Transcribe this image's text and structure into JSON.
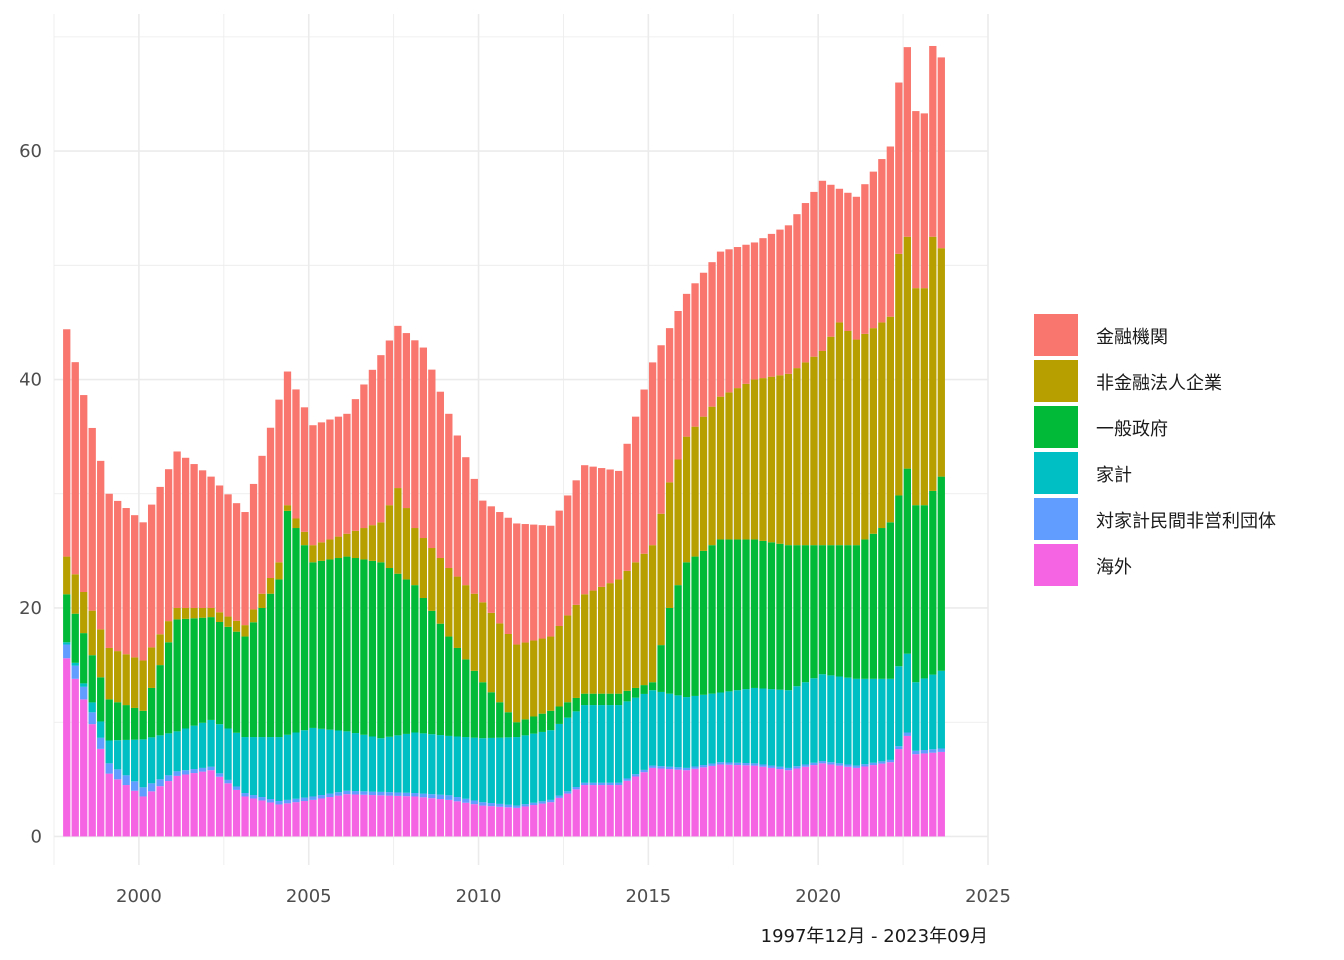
{
  "chart_data": {
    "type": "bar",
    "stacked": true,
    "title": "",
    "xlabel": "",
    "ylabel": "",
    "caption": "1997年12月 - 2023年09月",
    "x_start": "1997Q4",
    "x_end": "2023Q3",
    "x_ticks": [
      2000,
      2005,
      2010,
      2015,
      2020,
      2025
    ],
    "x_range": [
      1997.5,
      2025
    ],
    "y_ticks": [
      0,
      20,
      40,
      60
    ],
    "y_range": [
      -2.5,
      72
    ],
    "grid": true,
    "legend_position": "right",
    "series_order_bottom_to_top": [
      "海外",
      "対家計民間非営利団体",
      "家計",
      "一般政府",
      "非金融法人企業",
      "金融機関"
    ],
    "totals_anchor": {
      "1997Q4": 44.4,
      "1999Q1": 30,
      "2000Q1": 27.5,
      "2001Q1": 33.7,
      "2002Q1": 31.5,
      "2003Q1": 28.4,
      "2004Q2": 40.7,
      "2005Q1": 36,
      "2006Q1": 37,
      "2007Q3": 44.7,
      "2008Q2": 42.8,
      "2009Q1": 37,
      "2010Q1": 29.4,
      "2011Q1": 27.4,
      "2012Q1": 27.2,
      "2013Q1": 32.5,
      "2014Q1": 32,
      "2015Q1": 41.5,
      "2016Q1": 47.5,
      "2017Q1": 51.2,
      "2018Q1": 52,
      "2019Q1": 53.5,
      "2020Q1": 57.4,
      "2021Q1": 56,
      "2022Q1": 60.4,
      "2022Q2": 66,
      "2022Q3": 69.1,
      "2022Q4": 63.5,
      "2023Q1": 63.3,
      "2023Q2": 69.2,
      "2023Q3": 68.2
    },
    "boundaries_anchor": {
      "海外": {
        "1997Q4": 15.6,
        "1998Q2": 12,
        "1999Q1": 5.5,
        "2000Q1": 3.5,
        "2001Q1": 5.3,
        "2002Q1": 5.8,
        "2003Q1": 3.5,
        "2004Q1": 2.8,
        "2005Q1": 3.2,
        "2006Q1": 3.7,
        "2007Q1": 3.6,
        "2008Q1": 3.5,
        "2009Q1": 3.2,
        "2010Q1": 2.7,
        "2011Q1": 2.5,
        "2012Q1": 3,
        "2013Q1": 4.5,
        "2014Q1": 4.5,
        "2015Q1": 6,
        "2016Q1": 5.8,
        "2017Q1": 6.3,
        "2018Q1": 6.2,
        "2019Q1": 5.8,
        "2020Q1": 6.4,
        "2021Q1": 6,
        "2022Q1": 6.5,
        "2022Q3": 8.8,
        "2022Q4": 7.2,
        "2023Q3": 7.4
      },
      "対家計民間非営利団体": {
        "1997Q4": 16.8,
        "1998Q2": 13.1,
        "1999Q1": 6.4,
        "2000Q1": 4.3,
        "2001Q1": 5.7,
        "2002Q1": 6.1,
        "2003Q1": 3.8,
        "2004Q1": 3.1,
        "2005Q1": 3.5,
        "2006Q1": 4,
        "2007Q1": 3.9,
        "2008Q1": 3.8,
        "2009Q1": 3.6,
        "2010Q1": 3,
        "2011Q1": 2.7,
        "2012Q1": 3.2,
        "2013Q1": 4.7,
        "2014Q1": 4.7,
        "2015Q1": 6.2,
        "2016Q1": 6,
        "2017Q1": 6.5,
        "2018Q1": 6.4,
        "2019Q1": 6,
        "2020Q1": 6.6,
        "2021Q1": 6.2,
        "2022Q1": 6.7,
        "2022Q3": 9.1,
        "2022Q4": 7.5,
        "2023Q3": 7.7
      },
      "家計": {
        "1997Q4": 17,
        "1998Q2": 13.4,
        "1999Q1": 8.4,
        "2000Q1": 8.5,
        "2001Q1": 9.2,
        "2002Q1": 10.2,
        "2003Q1": 8.7,
        "2004Q1": 8.7,
        "2005Q1": 9.5,
        "2006Q1": 9.2,
        "2007Q1": 8.6,
        "2008Q1": 9.1,
        "2009Q1": 8.8,
        "2010Q1": 8.6,
        "2011Q1": 8.7,
        "2012Q1": 9.3,
        "2013Q1": 11.5,
        "2014Q1": 11.5,
        "2015Q1": 12.8,
        "2016Q1": 12.2,
        "2017Q1": 12.6,
        "2018Q1": 13,
        "2019Q1": 12.8,
        "2020Q1": 14.2,
        "2021Q1": 13.8,
        "2022Q1": 13.8,
        "2022Q3": 16,
        "2022Q4": 13.5,
        "2023Q3": 14.5
      },
      "一般政府": {
        "1997Q4": 21.2,
        "1998Q2": 17.8,
        "1999Q1": 12,
        "2000Q1": 11,
        "2001Q1": 19,
        "2002Q1": 19.2,
        "2003Q1": 17.5,
        "2004Q1": 22.5,
        "2004Q2": 28.5,
        "2005Q1": 24,
        "2006Q1": 24.5,
        "2007Q1": 24,
        "2008Q1": 22,
        "2009Q1": 17.5,
        "2010Q1": 13.5,
        "2011Q1": 10,
        "2012Q1": 11,
        "2013Q1": 12.5,
        "2014Q1": 12.5,
        "2015Q1": 13.5,
        "2015Q3": 20,
        "2016Q1": 24,
        "2017Q1": 26,
        "2018Q1": 26,
        "2019Q1": 25.5,
        "2020Q1": 25.5,
        "2021Q1": 25.5,
        "2022Q1": 27.5,
        "2022Q3": 32.2,
        "2022Q4": 29,
        "2023Q1": 29,
        "2023Q3": 31.5
      },
      "非金融法人企業": {
        "1997Q4": 24.5,
        "1998Q2": 21.4,
        "1999Q1": 16.5,
        "2000Q1": 15.4,
        "2001Q1": 20,
        "2002Q1": 20,
        "2003Q1": 18.5,
        "2004Q1": 24,
        "2004Q2": 29,
        "2005Q1": 25.5,
        "2006Q1": 26.5,
        "2007Q1": 27.5,
        "2007Q3": 30.5,
        "2008Q1": 27,
        "2009Q1": 23.5,
        "2010Q1": 20.5,
        "2011Q1": 16.8,
        "2012Q1": 17.5,
        "2013Q1": 21.2,
        "2014Q1": 22.5,
        "2015Q1": 25.5,
        "2015Q3": 31,
        "2016Q1": 35,
        "2017Q1": 38.5,
        "2018Q1": 40,
        "2019Q1": 40.5,
        "2020Q1": 42.5,
        "2020Q3": 45,
        "2021Q1": 43.5,
        "2022Q1": 45.5,
        "2022Q2": 51,
        "2022Q3": 52.5,
        "2022Q4": 48,
        "2023Q1": 48,
        "2023Q2": 52.5,
        "2023Q3": 51.5
      }
    },
    "series": [
      {
        "name": "金融機関",
        "color": "#F8766D"
      },
      {
        "name": "非金融法人企業",
        "color": "#B79F00"
      },
      {
        "name": "一般政府",
        "color": "#00BA38"
      },
      {
        "name": "家計",
        "color": "#00BFC4"
      },
      {
        "name": "対家計民間非営利団体",
        "color": "#619CFF"
      },
      {
        "name": "海外",
        "color": "#F564E3"
      }
    ]
  }
}
